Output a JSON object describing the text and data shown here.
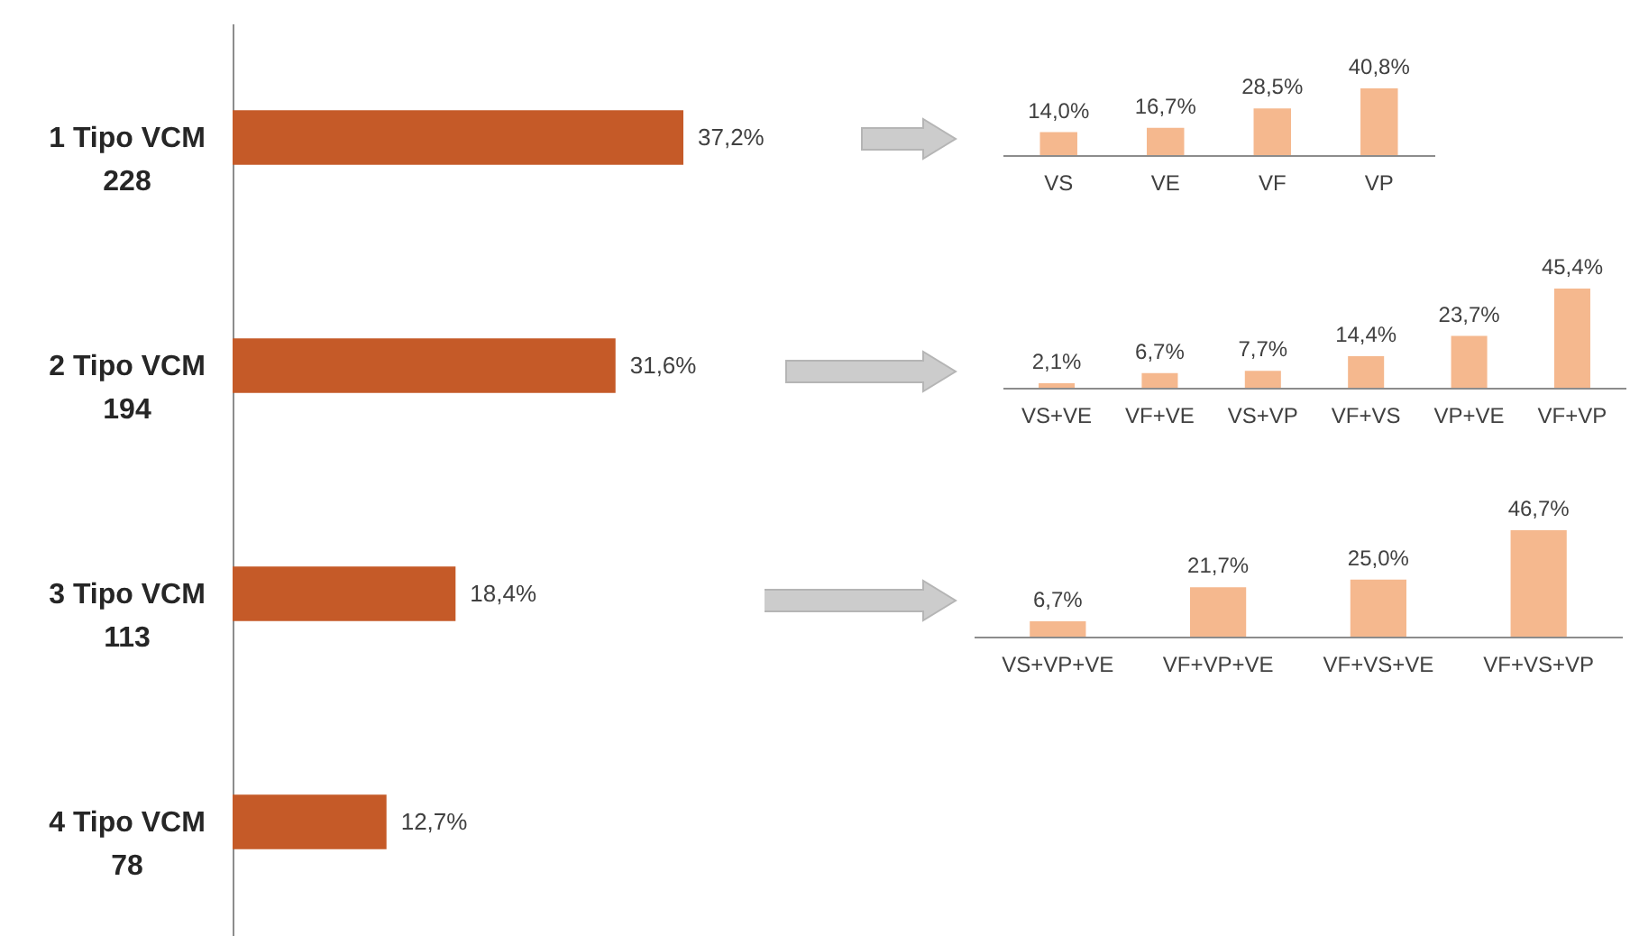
{
  "chart_data": [
    {
      "type": "bar",
      "orientation": "horizontal",
      "categories": [
        "1 Tipo VCM\n228",
        "2 Tipo VCM\n194",
        "3 Tipo VCM\n113",
        "4 Tipo VCM\n78"
      ],
      "values": [
        37.2,
        31.6,
        18.4,
        12.7
      ],
      "value_labels": [
        "37,2%",
        "31,6%",
        "18,4%",
        "12,7%"
      ],
      "color": "#c55a28"
    },
    {
      "type": "bar",
      "categories": [
        "VS",
        "VE",
        "VF",
        "VP"
      ],
      "values": [
        14.0,
        16.7,
        28.5,
        40.8
      ],
      "value_labels": [
        "14,0%",
        "16,7%",
        "28,5%",
        "40,8%"
      ],
      "color": "#f5b88e"
    },
    {
      "type": "bar",
      "categories": [
        "VS+VE",
        "VF+VE",
        "VS+VP",
        "VF+VS",
        "VP+VE",
        "VF+VP"
      ],
      "values": [
        2.1,
        6.7,
        7.7,
        14.4,
        23.7,
        45.4
      ],
      "value_labels": [
        "2,1%",
        "6,7%",
        "7,7%",
        "14,4%",
        "23,7%",
        "45,4%"
      ],
      "color": "#f5b88e"
    },
    {
      "type": "bar",
      "categories": [
        "VS+VP+VE",
        "VF+VP+VE",
        "VF+VS+VE",
        "VF+VS+VP"
      ],
      "values": [
        6.7,
        21.7,
        25.0,
        46.7
      ],
      "value_labels": [
        "6,7%",
        "21,7%",
        "25,0%",
        "46,7%"
      ],
      "color": "#f5b88e"
    }
  ]
}
